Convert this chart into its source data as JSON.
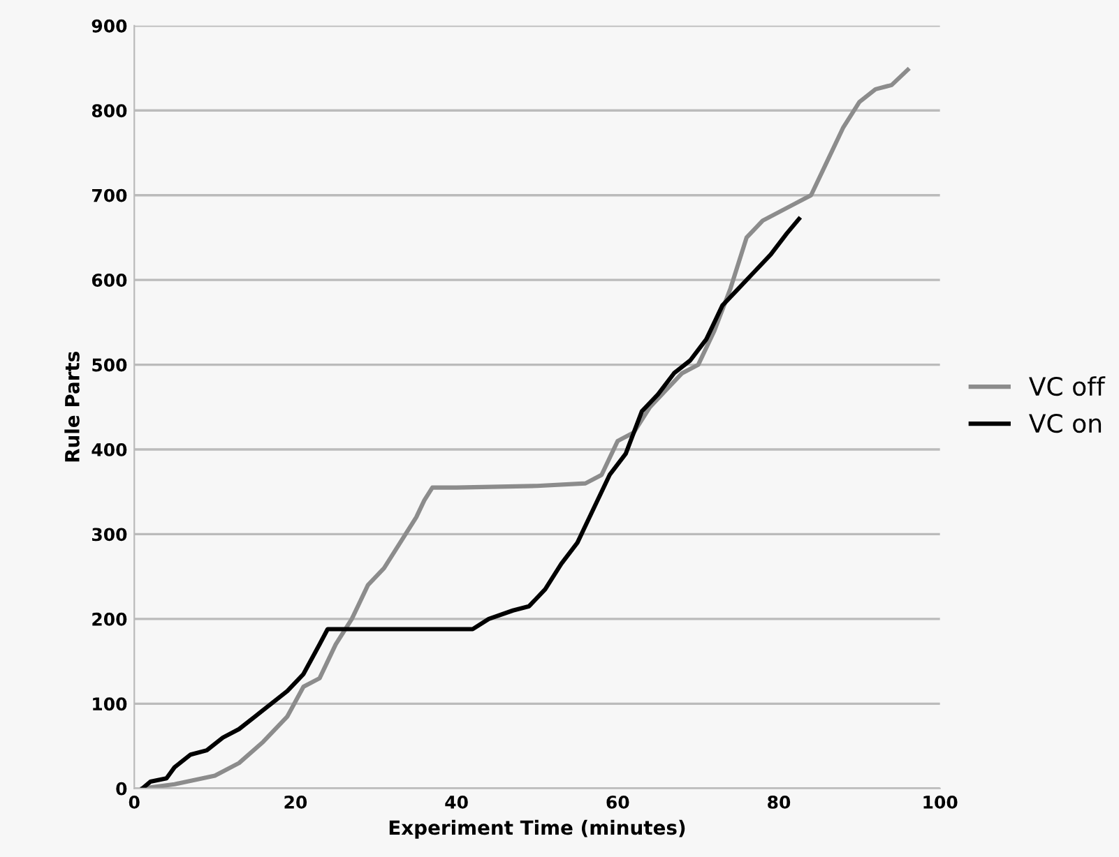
{
  "chart_data": {
    "type": "line",
    "xlabel": "Experiment Time (minutes)",
    "ylabel": "Rule Parts",
    "xlim": [
      0,
      100
    ],
    "ylim": [
      0,
      900
    ],
    "xticks": [
      0,
      20,
      40,
      60,
      80,
      100
    ],
    "yticks": [
      0,
      100,
      200,
      300,
      400,
      500,
      600,
      700,
      800,
      900
    ],
    "grid": "y",
    "legend": "right",
    "marker": "none",
    "line_style": "solid",
    "series": [
      {
        "name": "VC off",
        "color": "#8c8c8c",
        "x": [
          1,
          5,
          10,
          13,
          16,
          19,
          21,
          23,
          25,
          27,
          29,
          31,
          33,
          35,
          36,
          37,
          40,
          50,
          56,
          58,
          60,
          62,
          64,
          66,
          68,
          70,
          72,
          74,
          76,
          78,
          82,
          84,
          86,
          88,
          90,
          92,
          94,
          96
        ],
        "values": [
          0,
          5,
          15,
          30,
          55,
          85,
          120,
          130,
          170,
          200,
          240,
          260,
          290,
          320,
          340,
          355,
          355,
          357,
          360,
          370,
          410,
          420,
          450,
          470,
          490,
          500,
          540,
          590,
          650,
          670,
          690,
          700,
          740,
          780,
          810,
          825,
          830,
          848
        ]
      },
      {
        "name": "VC on",
        "color": "#000000",
        "x": [
          1,
          2,
          4,
          5,
          7,
          9,
          11,
          13,
          15,
          17,
          19,
          21,
          23,
          24,
          30,
          42,
          44,
          47,
          49,
          51,
          53,
          55,
          57,
          59,
          61,
          63,
          65,
          67,
          69,
          71,
          73,
          75,
          77,
          79,
          81,
          82.5
        ],
        "values": [
          0,
          8,
          12,
          25,
          40,
          45,
          60,
          70,
          85,
          100,
          115,
          135,
          170,
          188,
          188,
          188,
          200,
          210,
          215,
          235,
          265,
          290,
          330,
          370,
          395,
          445,
          465,
          490,
          505,
          530,
          570,
          590,
          610,
          630,
          655,
          672
        ]
      }
    ]
  }
}
